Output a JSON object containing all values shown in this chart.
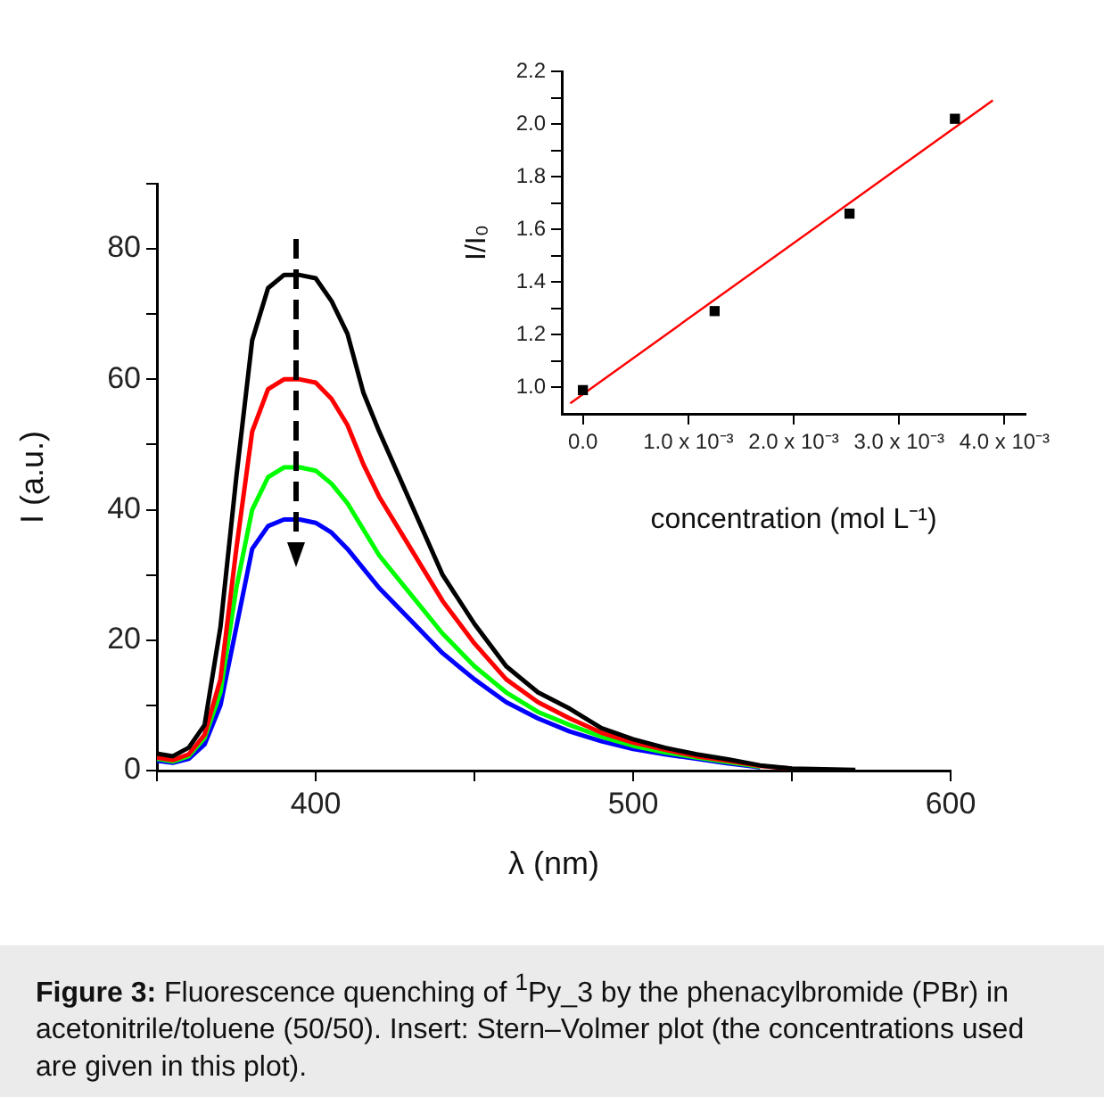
{
  "chart_data": [
    {
      "type": "line",
      "xlabel": "λ (nm)",
      "ylabel": "I (a.u.)",
      "marker": "none",
      "legend": false,
      "grid": false,
      "x": [
        350,
        355,
        360,
        365,
        370,
        375,
        380,
        385,
        390,
        395,
        400,
        405,
        410,
        415,
        420,
        430,
        440,
        450,
        460,
        470,
        480,
        490,
        500,
        510,
        520,
        530,
        540,
        550,
        560,
        570
      ],
      "series": [
        {
          "color": "#000000",
          "values": [
            2.6,
            2.2,
            3.5,
            7,
            22,
            45,
            66,
            74,
            76,
            76,
            75.5,
            72,
            67,
            58,
            52,
            41,
            30,
            22.5,
            16,
            12,
            9.5,
            6.5,
            4.8,
            3.5,
            2.5,
            1.7,
            0.8,
            0.3,
            0.2,
            0.1
          ]
        },
        {
          "color": "#ff0000",
          "values": [
            2,
            1.6,
            2.5,
            5.5,
            14,
            34,
            52,
            58.5,
            60,
            60,
            59.5,
            57,
            53,
            47,
            42,
            34,
            26,
            19.5,
            14,
            10.5,
            8,
            5.8,
            4.3,
            3.2,
            2.2,
            1.5,
            0.7,
            0.3,
            null,
            null
          ]
        },
        {
          "color": "#00ff00",
          "values": [
            1.8,
            1.4,
            2.2,
            5,
            12,
            28,
            40,
            45,
            46.5,
            46.5,
            46,
            44,
            41,
            37,
            33,
            27,
            21,
            16,
            12,
            9,
            7,
            5.2,
            3.8,
            2.8,
            2,
            1.3,
            0.6,
            null,
            null,
            null
          ]
        },
        {
          "color": "#0000ff",
          "values": [
            1.5,
            1.2,
            1.8,
            4,
            10,
            22,
            34,
            37.5,
            38.5,
            38.5,
            38,
            36.5,
            34,
            31,
            28,
            23,
            18,
            14,
            10.5,
            8,
            6,
            4.5,
            3.3,
            2.5,
            1.8,
            1.1,
            0.5,
            null,
            null,
            null
          ]
        }
      ],
      "xlim": [
        350,
        600
      ],
      "xticks": [
        {
          "value": 350,
          "label": null
        },
        400,
        {
          "value": 450,
          "label": null
        },
        500,
        {
          "value": 550,
          "label": null
        },
        600
      ],
      "ylim": [
        0,
        90
      ],
      "yticks": [
        0,
        {
          "value": 10,
          "label": null
        },
        20,
        {
          "value": 30,
          "label": null
        },
        40,
        {
          "value": 50,
          "label": null
        },
        60,
        {
          "value": 70,
          "label": null
        },
        80,
        {
          "value": 90,
          "label": null
        }
      ],
      "annotations": [
        "Figure 3: Fluorescence quenching of $^{1}$Py_3 by the phenacylbromide (PBr) in acetonitrile/toluene (50/50). Insert: Stern–Volmer plot (the concentrations used are given in this plot)."
      ]
    },
    {
      "type": "scatter",
      "xlabel": "concentration (mol L⁻¹)",
      "ylabel": "I/I₀",
      "marker": "square",
      "legend": false,
      "grid": false,
      "series": [
        {
          "color": "#000000",
          "x": [
            0,
            0.00125,
            0.00253,
            0.00353
          ],
          "values": [
            0.99,
            1.29,
            1.66,
            2.02
          ]
        },
        {
          "type": "line",
          "marker": "none",
          "color": "#ff0000",
          "x": [
            -0.00012,
            0.00389
          ],
          "values": [
            0.94,
            2.09
          ]
        }
      ],
      "xlim": [
        -0.0002,
        0.0042
      ],
      "xticks": [
        {
          "value": 0,
          "label": "0.0"
        },
        {
          "value": 0.001,
          "label": "1.0 x 10⁻³"
        },
        {
          "value": 0.002,
          "label": "2.0 x 10⁻³"
        },
        {
          "value": 0.003,
          "label": "3.0 x 10⁻³"
        },
        {
          "value": 0.004,
          "label": "4.0 x 10⁻³"
        }
      ],
      "ylim": [
        0.9,
        2.2
      ],
      "yticks": [
        {
          "value": 1.0,
          "label": "1.0"
        },
        {
          "value": 1.1,
          "label": null
        },
        {
          "value": 1.2,
          "label": "1.2"
        },
        {
          "value": 1.3,
          "label": null
        },
        {
          "value": 1.4,
          "label": "1.4"
        },
        {
          "value": 1.5,
          "label": null
        },
        {
          "value": 1.6,
          "label": "1.6"
        },
        {
          "value": 1.7,
          "label": null
        },
        {
          "value": 1.8,
          "label": "1.8"
        },
        {
          "value": 1.9,
          "label": null
        },
        {
          "value": 2.0,
          "label": "2.0"
        },
        {
          "value": 2.1,
          "label": null
        },
        {
          "value": 2.2,
          "label": "2.2"
        }
      ]
    }
  ]
}
